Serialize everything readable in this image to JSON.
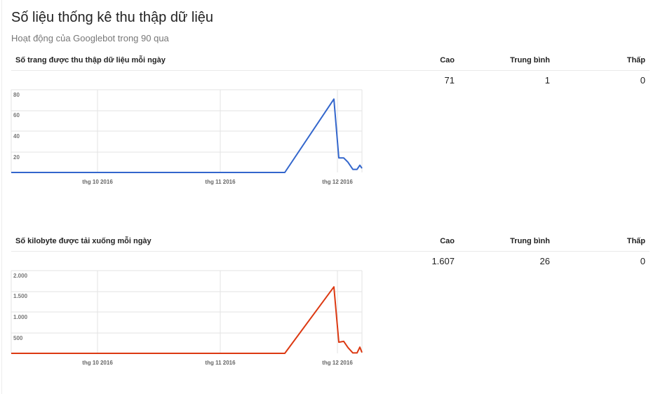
{
  "page": {
    "title": "Số liệu thống kê thu thập dữ liệu",
    "subtitle": "Hoạt động của Googlebot trong 90 qua"
  },
  "sections": [
    {
      "title": "Số trang được thu thập dữ liệu mỗi ngày",
      "headers": [
        "Cao",
        "Trung bình",
        "Thấp"
      ],
      "values": [
        "71",
        "1",
        "0"
      ],
      "color": "#3366cc"
    },
    {
      "title": "Số kilobyte được tải xuống mỗi ngày",
      "headers": [
        "Cao",
        "Trung bình",
        "Thấp"
      ],
      "values": [
        "1.607",
        "26",
        "0"
      ],
      "color": "#dc3912"
    }
  ],
  "chart_data": [
    {
      "type": "line",
      "series": [
        {
          "values": [
            0,
            0,
            0,
            71,
            14,
            14,
            10,
            3,
            3,
            7,
            4
          ]
        }
      ],
      "x_labels": [
        "thg 10 2016",
        "thg 11 2016",
        "thg 12 2016"
      ],
      "y_ticks": [
        "80",
        "60",
        "40",
        "20"
      ],
      "ylim": [
        0,
        80
      ],
      "grid": true,
      "color": "#3366cc"
    },
    {
      "type": "line",
      "series": [
        {
          "values": [
            0,
            0,
            0,
            1607,
            270,
            290,
            140,
            10,
            10,
            150,
            20
          ]
        }
      ],
      "x_labels": [
        "thg 10 2016",
        "thg 11 2016",
        "thg 12 2016"
      ],
      "y_ticks": [
        "2.000",
        "1.500",
        "1.000",
        "500"
      ],
      "ylim": [
        0,
        2000
      ],
      "grid": true,
      "color": "#dc3912"
    }
  ]
}
